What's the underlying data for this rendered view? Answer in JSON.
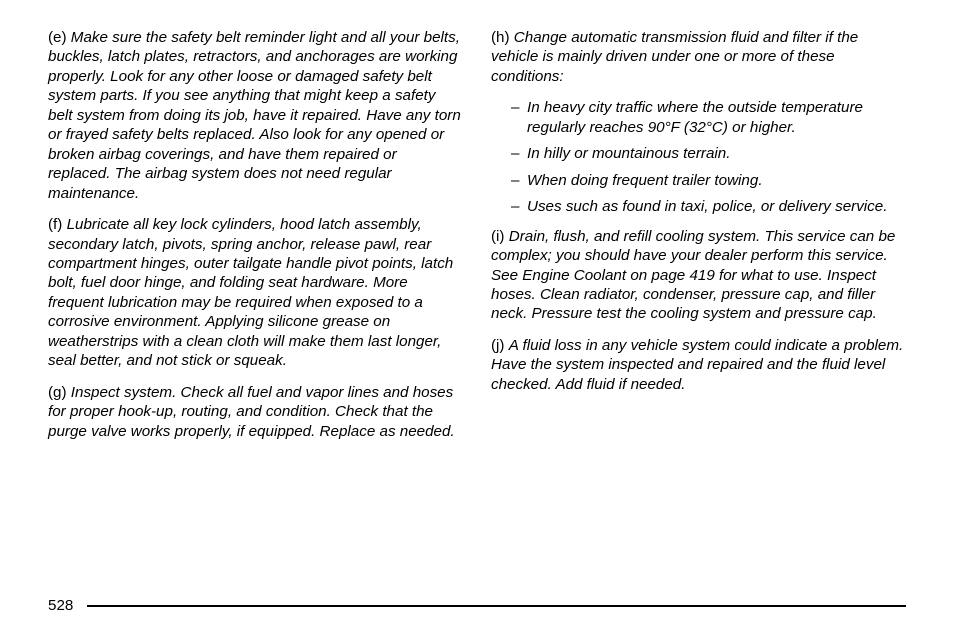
{
  "left": {
    "p1": {
      "marker": "(e)",
      "text": "Make sure the safety belt reminder light and all your belts, buckles, latch plates, retractors, and anchorages are working properly. Look for any other loose or damaged safety belt system parts. If you see anything that might keep a safety belt system from doing its job, have it repaired. Have any torn or frayed safety belts replaced. Also look for any opened or broken airbag coverings, and have them repaired or replaced. The airbag system does not need regular maintenance."
    },
    "p2": {
      "marker": "(f)",
      "text": "Lubricate all key lock cylinders, hood latch assembly, secondary latch, pivots, spring anchor, release pawl, rear compartment hinges, outer tailgate handle pivot points, latch bolt, fuel door hinge, and folding seat hardware. More frequent lubrication may be required when exposed to a corrosive environment. Applying silicone grease on weatherstrips with a clean cloth will make them last longer, seal better, and not stick or squeak."
    },
    "p3": {
      "marker": "(g)",
      "text": "Inspect system. Check all fuel and vapor lines and hoses for proper hook-up, routing, and condition. Check that the purge valve works properly, if equipped. Replace as needed."
    }
  },
  "right": {
    "p1": {
      "marker": "(h)",
      "text": "Change automatic transmission fluid and filter if the vehicle is mainly driven under one or more of these conditions:"
    },
    "bullets": [
      "In heavy city traffic where the outside temperature regularly reaches 90°F (32°C) or higher.",
      "In hilly or mountainous terrain.",
      "When doing frequent trailer towing.",
      "Uses such as found in taxi, police, or delivery service."
    ],
    "p2": {
      "marker": "(i)",
      "text": "Drain, flush, and refill cooling system. This service can be complex; you should have your dealer perform this service. See Engine Coolant on page 419 for what to use. Inspect hoses. Clean radiator, condenser, pressure cap, and filler neck. Pressure test the cooling system and pressure cap."
    },
    "p3": {
      "marker": "(j)",
      "text": "A fluid loss in any vehicle system could indicate a problem. Have the system inspected and repaired and the fluid level checked. Add fluid if needed."
    }
  },
  "page_number": "528"
}
